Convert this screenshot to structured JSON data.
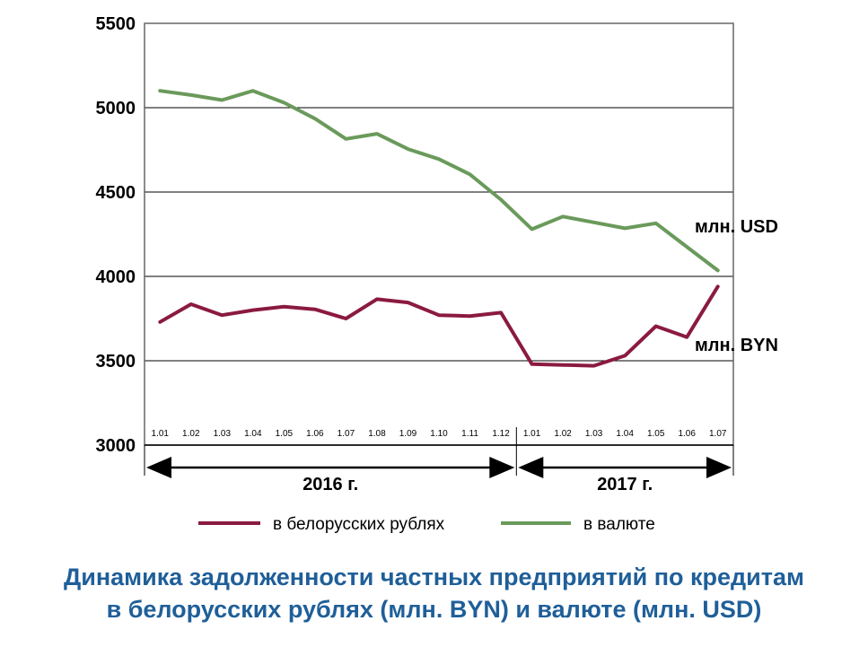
{
  "chart_data": {
    "type": "line",
    "title_lines": [
      "Динамика задолженности частных предприятий по кредитам",
      "в белорусских рублях (млн. BYN) и валюте (млн. USD)"
    ],
    "categories": [
      "1.01",
      "1.02",
      "1.03",
      "1.04",
      "1.05",
      "1.06",
      "1.07",
      "1.08",
      "1.09",
      "1.10",
      "1.11",
      "1.12",
      "1.01",
      "1.02",
      "1.03",
      "1.04",
      "1.05",
      "1.06",
      "1.07"
    ],
    "years": [
      {
        "label": "2016 г.",
        "from_index": 0,
        "to_index": 11
      },
      {
        "label": "2017 г.",
        "from_index": 12,
        "to_index": 18
      }
    ],
    "ylim": [
      3000,
      5500
    ],
    "yticks": [
      3000,
      3500,
      4000,
      4500,
      5000,
      5500
    ],
    "grid": true,
    "legend_position": "bottom",
    "series": [
      {
        "name": "в белорусских рублях",
        "end_label": "млн. BYN",
        "color": "#8b1a3f",
        "values": [
          3730,
          3835,
          3770,
          3800,
          3820,
          3805,
          3750,
          3865,
          3845,
          3770,
          3765,
          3785,
          3480,
          3475,
          3470,
          3530,
          3705,
          3640,
          3940
        ]
      },
      {
        "name": "в валюте",
        "end_label": "млн. USD",
        "color": "#6a9a5b",
        "values": [
          5100,
          5075,
          5045,
          5100,
          5030,
          4935,
          4815,
          4845,
          4755,
          4695,
          4605,
          4455,
          4280,
          4355,
          4320,
          4285,
          4315,
          4175,
          4035
        ]
      }
    ]
  }
}
